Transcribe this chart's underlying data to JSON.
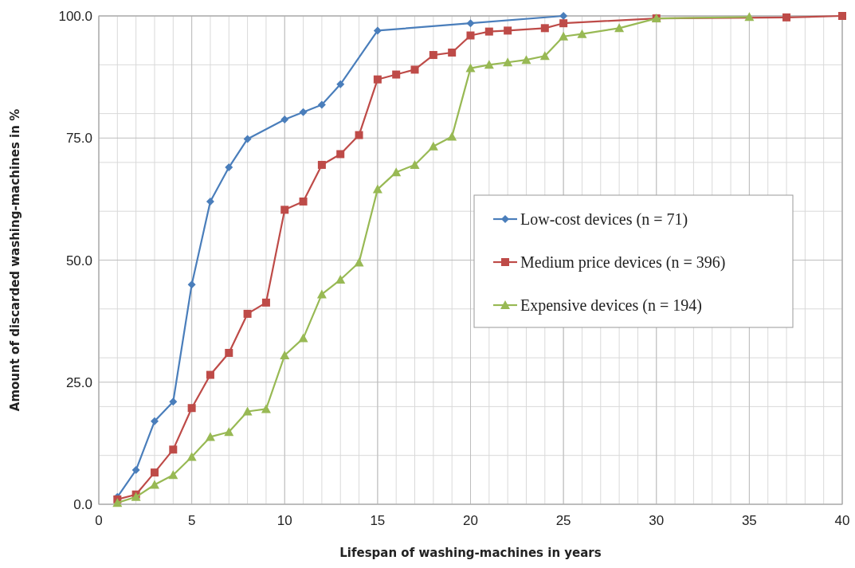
{
  "chart_data": {
    "type": "line",
    "xlabel": "Lifespan of washing-machines in years",
    "ylabel": "Amount of discarded washing-machines in %",
    "xlim": [
      0,
      40
    ],
    "xticks": [
      0,
      5,
      10,
      15,
      20,
      25,
      30,
      35,
      40
    ],
    "ylim": [
      0,
      100
    ],
    "yticks": [
      {
        "value": 0,
        "label": "0.0"
      },
      {
        "value": 25,
        "label": "25.0"
      },
      {
        "value": 50,
        "label": "50.0"
      },
      {
        "value": 75,
        "label": "75.0"
      },
      {
        "value": 100,
        "label": "100.0"
      }
    ],
    "grid": true,
    "legend": "right",
    "line_style": "solid",
    "series": [
      {
        "name": "Low-cost devices (n = 71)",
        "color": "#4a7ebb",
        "marker": "diamond",
        "x": [
          1,
          2,
          3,
          4,
          5,
          6,
          7,
          8,
          10,
          11,
          12,
          13,
          15,
          20,
          25
        ],
        "values": [
          1.5,
          7,
          17,
          21,
          45,
          62,
          69,
          74.8,
          78.8,
          80.3,
          81.8,
          86,
          97,
          98.5,
          100
        ]
      },
      {
        "name": "Medium price devices (n = 396)",
        "color": "#be4b48",
        "marker": "square",
        "x": [
          1,
          2,
          3,
          4,
          5,
          6,
          7,
          8,
          9,
          10,
          11,
          12,
          13,
          14,
          15,
          16,
          17,
          18,
          19,
          20,
          21,
          22,
          24,
          25,
          30,
          37,
          40
        ],
        "values": [
          1,
          2,
          6.5,
          11.2,
          19.7,
          26.5,
          31,
          39,
          41.3,
          60.3,
          62,
          69.5,
          71.7,
          75.6,
          87,
          88,
          89,
          92,
          92.5,
          96,
          96.8,
          97,
          97.5,
          98.5,
          99.5,
          99.7,
          100
        ]
      },
      {
        "name": "Expensive devices (n = 194)",
        "color": "#98b954",
        "marker": "triangle",
        "x": [
          1,
          2,
          3,
          4,
          5,
          6,
          7,
          8,
          9,
          10,
          11,
          12,
          13,
          14,
          15,
          16,
          17,
          18,
          19,
          20,
          21,
          22,
          23,
          24,
          25,
          26,
          28,
          30,
          35
        ],
        "values": [
          0.3,
          1.5,
          4,
          6,
          9.7,
          13.8,
          14.8,
          19,
          19.5,
          30.5,
          34,
          43,
          46,
          49.5,
          64.5,
          68,
          69.5,
          73.3,
          75.3,
          89.3,
          90,
          90.5,
          91,
          91.8,
          95.8,
          96.3,
          97.5,
          99.5,
          99.8
        ]
      }
    ]
  }
}
